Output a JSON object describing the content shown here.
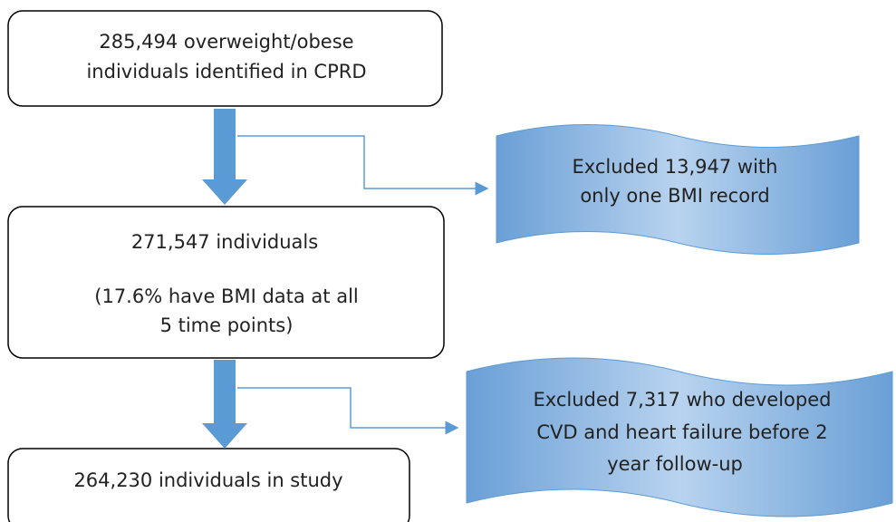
{
  "nodes": [
    {
      "lines": [
        "285,494 overweight/obese",
        "individuals identified in CPRD"
      ]
    },
    {
      "lines": [
        "271,547 individuals",
        "(17.6% have BMI data at all",
        "5 time points)"
      ]
    },
    {
      "lines": [
        "264,230 individuals in study"
      ]
    }
  ],
  "exclusions": [
    {
      "lines": [
        "Excluded 13,947 with",
        "only one BMI record"
      ]
    },
    {
      "lines": [
        "Excluded 7,317 who developed",
        "CVD and heart failure before 2",
        "year follow-up"
      ]
    }
  ]
}
